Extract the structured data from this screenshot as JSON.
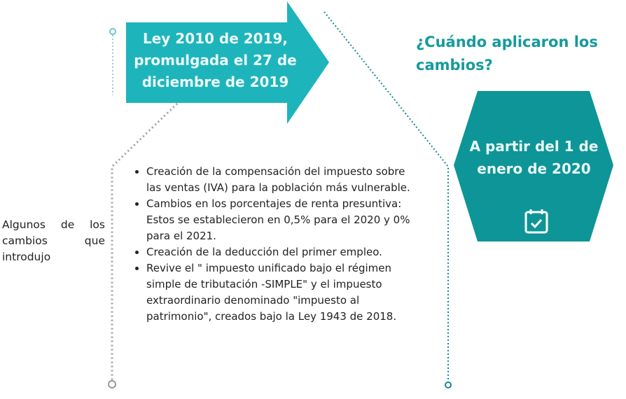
{
  "arrow": {
    "text": "Ley 2010 de 2019, promulgada el 27 de diciembre de 2019",
    "color": "#1db5bb"
  },
  "question": "¿Cuándo aplicaron los cambios?",
  "hexagon": {
    "text": "A partir del 1 de enero de 2020",
    "icon": "calendar-check-icon",
    "color": "#0e9597"
  },
  "side_label": "Algunos de los cambios que introdujo",
  "changes": [
    "Creación de la compensación del impuesto sobre las ventas (IVA) para la población más vulnerable.",
    "Cambios en los porcentajes de renta presuntiva: Estos se establecieron en 0,5% para el 2020 y 0% para el 2021.",
    "Creación de la deducción del primer empleo.",
    "Revive el \" impuesto unificado bajo el régimen simple de tributación -SIMPLE\" y el impuesto extraordinario denominado \"impuesto al patrimonio\", creados bajo la Ley 1943 de 2018."
  ]
}
